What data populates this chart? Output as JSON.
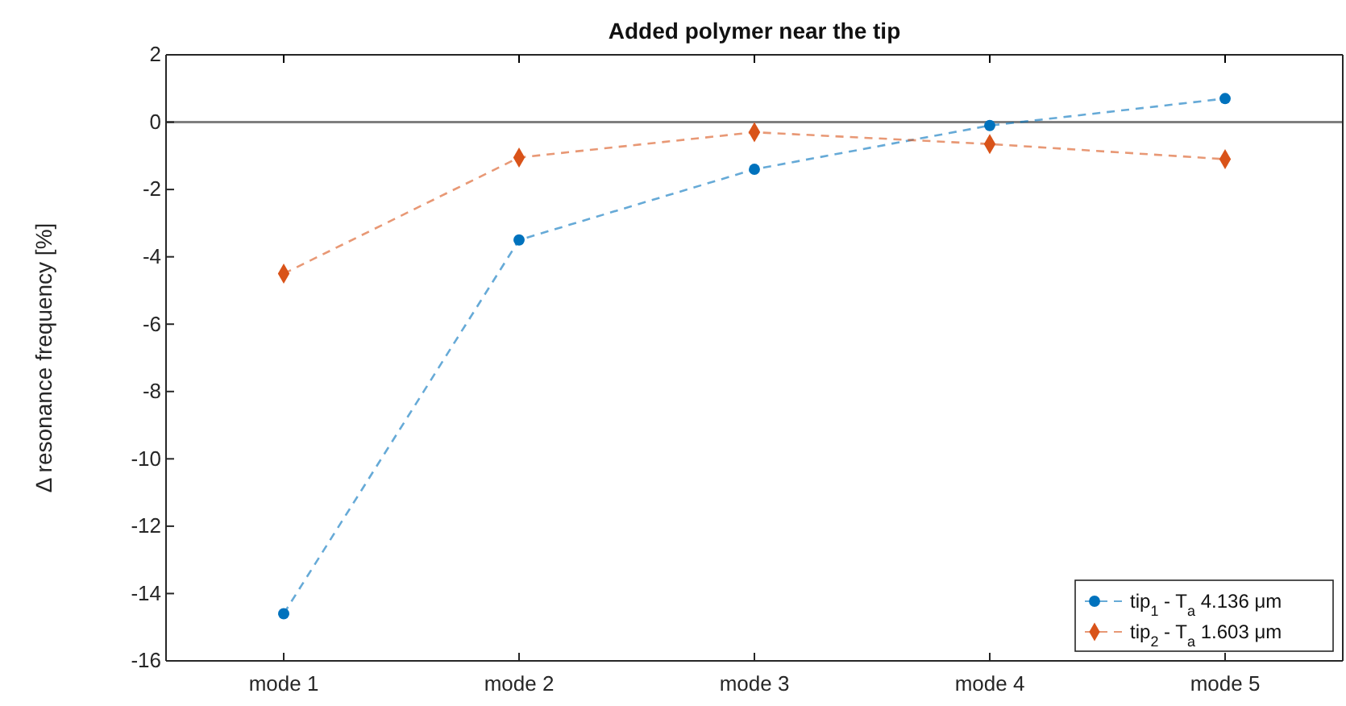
{
  "chart_data": {
    "type": "line",
    "title": "Added polymer near the tip",
    "ylabel": "Δ resonance frequency [%]",
    "categories": [
      "mode 1",
      "mode 2",
      "mode 3",
      "mode 4",
      "mode 5"
    ],
    "series": [
      {
        "name": "tip$_{1}$ - T$_{a}$ 4.136 μm",
        "color": "#0072bd",
        "marker": "circle",
        "values": [
          -14.6,
          -3.5,
          -1.4,
          -0.1,
          0.7
        ]
      },
      {
        "name": "tip$_{2}$ - T$_{a}$ 1.603 μm",
        "color": "#d95319",
        "marker": "diamond",
        "values": [
          -4.5,
          -1.05,
          -0.3,
          -0.65,
          -1.1
        ]
      }
    ],
    "ylim": [
      -16,
      2
    ],
    "yticks": [
      -16,
      -14,
      -12,
      -10,
      -8,
      -6,
      -4,
      -2,
      0,
      2
    ],
    "ref_lines": [
      {
        "axis": "y",
        "value": 0,
        "color": "#7f7f7f"
      }
    ],
    "line_style": "dashed",
    "grid": false,
    "legend": "bottom right"
  }
}
